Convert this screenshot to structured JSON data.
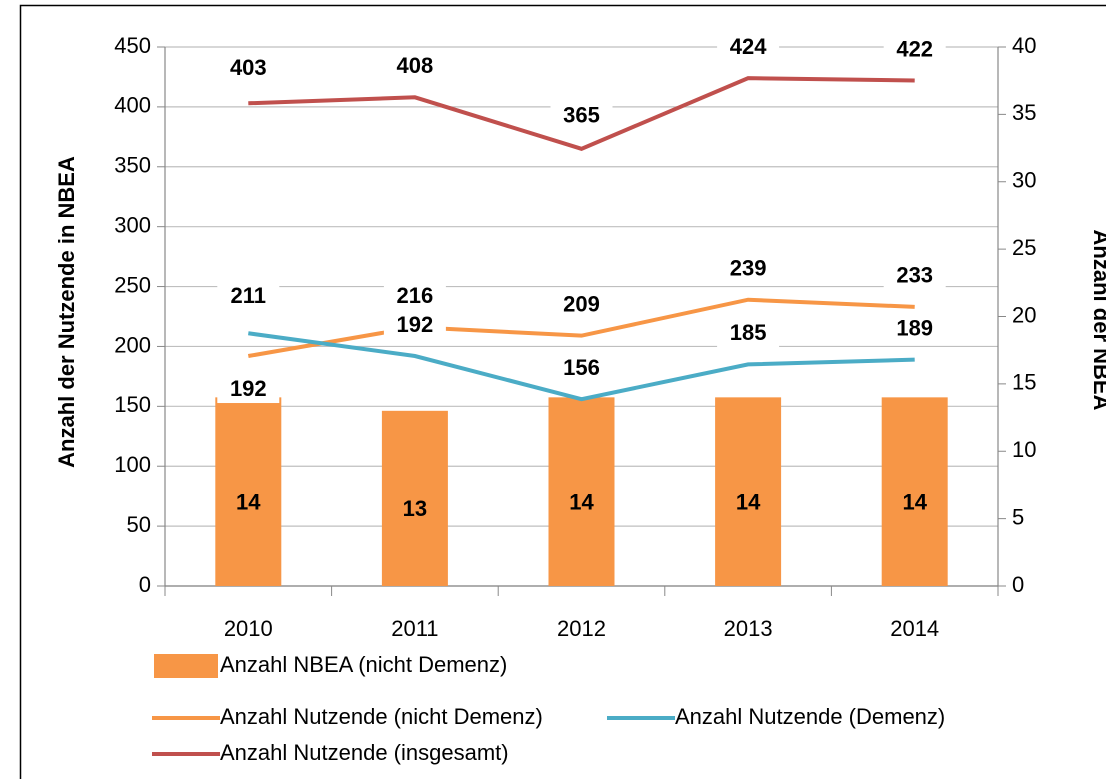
{
  "chart_data": {
    "type": "bar",
    "categories": [
      "2010",
      "2011",
      "2012",
      "2013",
      "2014"
    ],
    "y_label": "Anzahl der Nutzende in NBEA",
    "y2_label": "Anzahl der NBEA",
    "ylim": [
      0,
      450
    ],
    "yticks": [
      0,
      50,
      100,
      150,
      200,
      250,
      300,
      350,
      400,
      450
    ],
    "y2lim": [
      0,
      40
    ],
    "y2ticks": [
      0,
      5,
      10,
      15,
      20,
      25,
      30,
      35,
      40
    ],
    "grid": true,
    "series": [
      {
        "name": "Anzahl NBEA (nicht Demenz)",
        "type": "bar",
        "axis": "y2",
        "color": "#f79646",
        "values": [
          14,
          13,
          14,
          14,
          14
        ]
      },
      {
        "name": "Anzahl Nutzende (nicht Demenz)",
        "type": "line",
        "color": "#f79646",
        "values": [
          192,
          216,
          209,
          239,
          233
        ]
      },
      {
        "name": "Anzahl Nutzende (Demenz)",
        "type": "line",
        "color": "#4bacc6",
        "values": [
          211,
          192,
          156,
          185,
          189
        ]
      },
      {
        "name": "Anzahl Nutzende (insgesamt)",
        "type": "line",
        "color": "#c0504d",
        "values": [
          403,
          408,
          365,
          424,
          422
        ]
      }
    ]
  }
}
